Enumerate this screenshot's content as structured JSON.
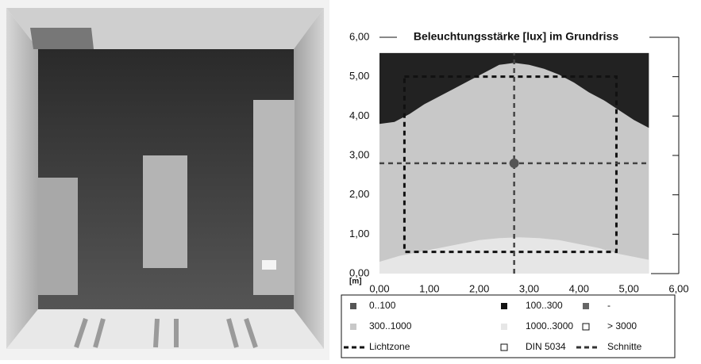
{
  "chart_data": {
    "type": "isoline_map",
    "title": "Beleuchtungsstärke [lux] im Grundriss",
    "unit_label": "[m]",
    "xlim": [
      0,
      6
    ],
    "ylim": [
      0,
      6
    ],
    "xticks": [
      {
        "value": 0,
        "label": "0,00"
      },
      {
        "value": 1,
        "label": "1,00"
      },
      {
        "value": 2,
        "label": "2,00"
      },
      {
        "value": 3,
        "label": "3,00"
      },
      {
        "value": 4,
        "label": "4,00"
      },
      {
        "value": 5,
        "label": "5,00"
      },
      {
        "value": 6,
        "label": "6,00"
      }
    ],
    "yticks": [
      {
        "value": 0,
        "label": "0,00"
      },
      {
        "value": 1,
        "label": "1,00"
      },
      {
        "value": 2,
        "label": "2,00"
      },
      {
        "value": 3,
        "label": "3,00"
      },
      {
        "value": 4,
        "label": "4,00"
      },
      {
        "value": 5,
        "label": "5,00"
      },
      {
        "value": 6,
        "label": "6,00"
      }
    ],
    "plan_xlim": [
      0,
      5.4
    ],
    "plan_ylim": [
      0,
      5.6
    ],
    "plan_color": "#c8c8c8",
    "zones": [
      {
        "color": "#222222",
        "from": "top",
        "x": [
          0,
          0.3,
          0.6,
          0.9,
          1.2,
          1.5,
          1.8,
          2.1,
          2.4,
          2.7,
          3.0,
          3.3,
          3.6,
          3.9,
          4.2,
          4.5,
          4.8,
          5.1,
          5.4
        ],
        "values": [
          3.8,
          3.85,
          4.05,
          4.3,
          4.5,
          4.7,
          4.9,
          5.1,
          5.3,
          5.35,
          5.3,
          5.2,
          5.05,
          4.85,
          4.6,
          4.4,
          4.15,
          3.9,
          3.7
        ]
      },
      {
        "color": "#e6e6e6",
        "from": "bottom",
        "x": [
          0,
          0.4,
          0.8,
          1.2,
          1.6,
          2.0,
          2.4,
          2.8,
          3.2,
          3.6,
          4.0,
          4.4,
          4.8,
          5.2,
          5.4
        ],
        "values": [
          0.3,
          0.45,
          0.55,
          0.65,
          0.75,
          0.85,
          0.9,
          0.92,
          0.9,
          0.85,
          0.75,
          0.65,
          0.5,
          0.4,
          0.35
        ]
      }
    ],
    "light_zone": {
      "xlim": [
        0.5,
        4.75
      ],
      "ylim": [
        0.55,
        5.0
      ]
    },
    "cuts": {
      "x": 2.7,
      "y": 2.8
    },
    "legend": [
      {
        "name": "0..100",
        "color": "#555555",
        "symbol": "square"
      },
      {
        "name": "100..300",
        "color": "#111111",
        "symbol": "square"
      },
      {
        "name": "-",
        "color": "#666666",
        "symbol": "square"
      },
      {
        "name": "300..1000",
        "color": "#c8c8c8",
        "symbol": "square"
      },
      {
        "name": "1000..3000",
        "color": "#e6e6e6",
        "symbol": "square"
      },
      {
        "name": "> 3000",
        "color": "#ffffff",
        "symbol": "open"
      },
      {
        "name": "Lichtzone",
        "color": "#111111",
        "symbol": "dash"
      },
      {
        "name": "DIN 5034",
        "color": "#ffffff",
        "symbol": "open"
      },
      {
        "name": "Schnitte",
        "color": "#333333",
        "symbol": "dash"
      }
    ]
  }
}
